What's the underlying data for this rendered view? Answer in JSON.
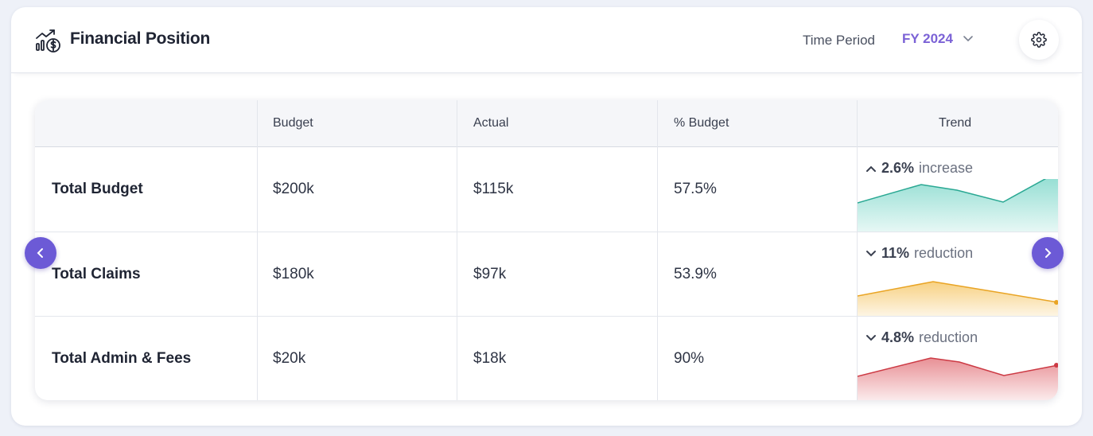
{
  "header": {
    "title": "Financial Position",
    "time_period_label": "Time Period",
    "time_period_value": "FY 2024"
  },
  "table": {
    "columns": [
      "",
      "Budget",
      "Actual",
      "% Budget",
      "Trend"
    ],
    "rows": [
      {
        "label": "Total Budget",
        "budget": "$200k",
        "actual": "$115k",
        "pct_budget": "57.5%",
        "trend": {
          "direction": "up",
          "pct": "2.6%",
          "word": "increase",
          "color": "#2fbfa9"
        }
      },
      {
        "label": "Total Claims",
        "budget": "$180k",
        "actual": "$97k",
        "pct_budget": "53.9%",
        "trend": {
          "direction": "down",
          "pct": "11%",
          "word": "reduction",
          "color": "#f2b230"
        }
      },
      {
        "label": "Total Admin & Fees",
        "budget": "$20k",
        "actual": "$18k",
        "pct_budget": "90%",
        "trend": {
          "direction": "down",
          "pct": "4.8%",
          "word": "reduction",
          "color": "#d9464f"
        }
      }
    ]
  },
  "colors": {
    "accent": "#7b62d6",
    "nav_button": "#6c5ad6"
  },
  "icons": {
    "header": "finance-chart-icon",
    "settings": "gear-icon",
    "dropdown": "chevron-down-icon",
    "prev": "chevron-left-icon",
    "next": "chevron-right-icon"
  }
}
